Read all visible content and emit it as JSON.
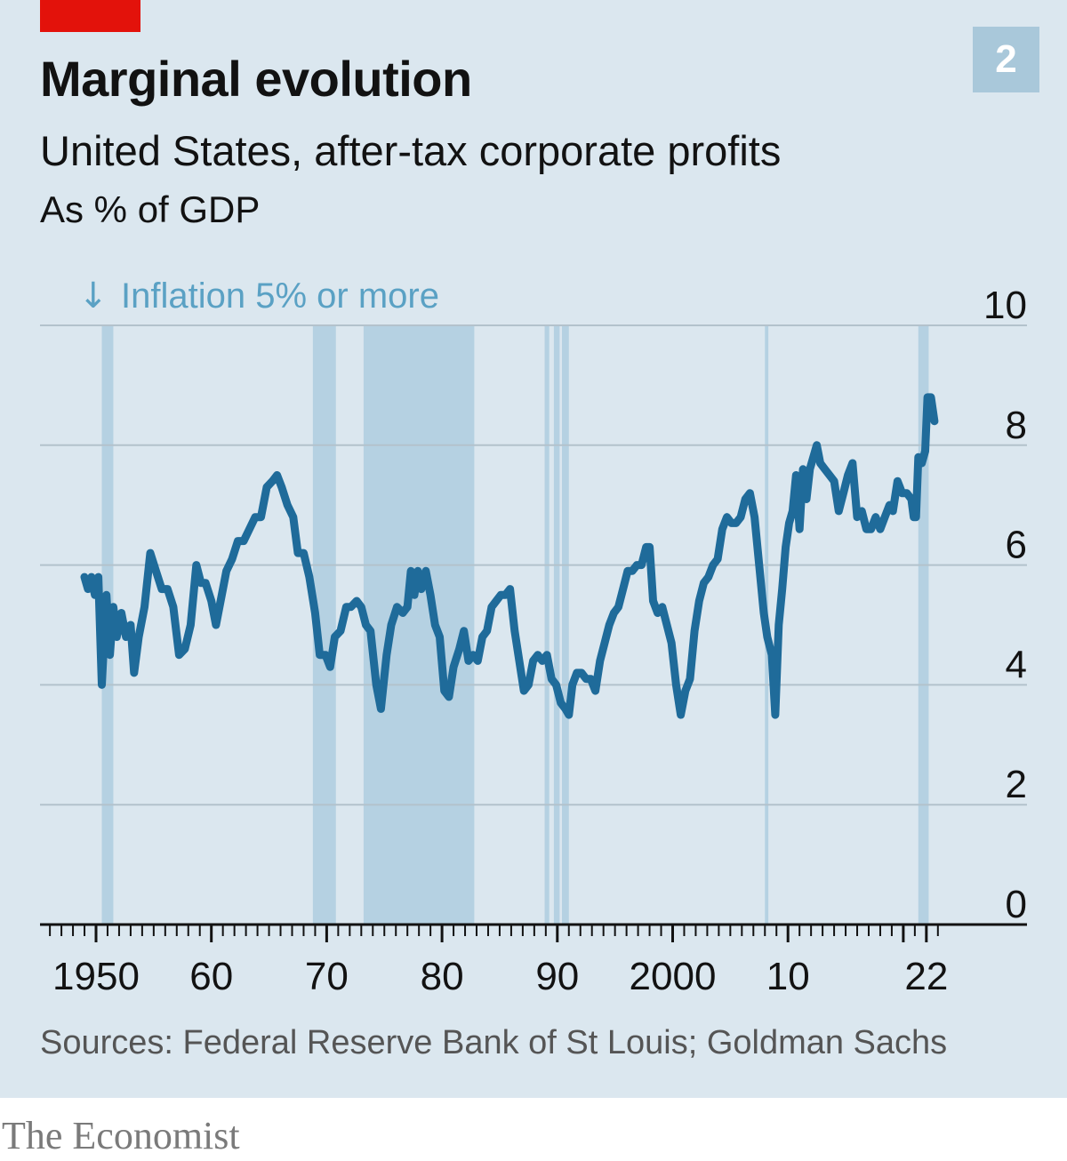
{
  "header": {
    "title": "Marginal evolution",
    "subtitle": "United States, after-tax corporate profits",
    "unit": "As % of GDP",
    "chart_number": "2",
    "brand_color": "#e3120b"
  },
  "legend": {
    "arrow": "↓",
    "shading_label": "Inflation 5% or more",
    "color": "#5aa1c4"
  },
  "footer": {
    "source": "Sources: Federal Reserve Bank of St Louis; Goldman Sachs",
    "brand": "The Economist"
  },
  "chart_data": {
    "type": "line",
    "title": "Marginal evolution",
    "subtitle": "United States, after-tax corporate profits",
    "ylabel": "As % of GDP",
    "xlim": [
      1946,
      2029
    ],
    "ylim": [
      0,
      10
    ],
    "yticks": [
      0,
      2,
      4,
      6,
      8,
      10
    ],
    "ytick_labels": [
      "0",
      "2",
      "4",
      "6",
      "8",
      "10"
    ],
    "xtick_labels": [
      {
        "year": 1950,
        "label": "1950"
      },
      {
        "year": 1960,
        "label": "60"
      },
      {
        "year": 1970,
        "label": "70"
      },
      {
        "year": 1980,
        "label": "80"
      },
      {
        "year": 1990,
        "label": "90"
      },
      {
        "year": 2000,
        "label": "2000"
      },
      {
        "year": 2010,
        "label": "10"
      },
      {
        "year": 2022,
        "label": "22"
      }
    ],
    "grid": true,
    "y_axis_position": "right",
    "line_color": "#1f6b9a",
    "shade_color": "#b5d1e2",
    "shaded_periods": [
      [
        1950.5,
        1951.5
      ],
      [
        1968.8,
        1970.8
      ],
      [
        1973.2,
        1982.8
      ],
      [
        1988.9,
        1989.3
      ],
      [
        1989.7,
        1990.2
      ],
      [
        1990.4,
        1991.0
      ],
      [
        2008.0,
        2008.3
      ],
      [
        2021.3,
        2022.2
      ]
    ],
    "series": [
      {
        "values": [
          [
            1949.0,
            5.8
          ],
          [
            1949.3,
            5.6
          ],
          [
            1949.6,
            5.8
          ],
          [
            1949.9,
            5.5
          ],
          [
            1950.2,
            5.8
          ],
          [
            1950.5,
            4.0
          ],
          [
            1950.9,
            5.5
          ],
          [
            1951.2,
            4.5
          ],
          [
            1951.5,
            5.3
          ],
          [
            1951.8,
            4.8
          ],
          [
            1952.2,
            5.2
          ],
          [
            1952.6,
            4.8
          ],
          [
            1953.0,
            5.0
          ],
          [
            1953.3,
            4.2
          ],
          [
            1953.7,
            4.8
          ],
          [
            1954.2,
            5.3
          ],
          [
            1954.7,
            6.2
          ],
          [
            1955.2,
            5.9
          ],
          [
            1955.7,
            5.6
          ],
          [
            1956.2,
            5.6
          ],
          [
            1956.7,
            5.3
          ],
          [
            1957.2,
            4.5
          ],
          [
            1957.7,
            4.6
          ],
          [
            1958.2,
            5.0
          ],
          [
            1958.7,
            6.0
          ],
          [
            1959.1,
            5.7
          ],
          [
            1959.5,
            5.7
          ],
          [
            1960.0,
            5.4
          ],
          [
            1960.4,
            5.0
          ],
          [
            1960.9,
            5.5
          ],
          [
            1961.3,
            5.9
          ],
          [
            1961.8,
            6.1
          ],
          [
            1962.3,
            6.4
          ],
          [
            1962.8,
            6.4
          ],
          [
            1963.3,
            6.6
          ],
          [
            1963.8,
            6.8
          ],
          [
            1964.3,
            6.8
          ],
          [
            1964.8,
            7.3
          ],
          [
            1965.3,
            7.4
          ],
          [
            1965.7,
            7.5
          ],
          [
            1966.1,
            7.3
          ],
          [
            1966.6,
            7.0
          ],
          [
            1967.1,
            6.8
          ],
          [
            1967.5,
            6.2
          ],
          [
            1968.0,
            6.2
          ],
          [
            1968.5,
            5.8
          ],
          [
            1969.0,
            5.2
          ],
          [
            1969.4,
            4.5
          ],
          [
            1969.9,
            4.5
          ],
          [
            1970.3,
            4.3
          ],
          [
            1970.7,
            4.8
          ],
          [
            1971.2,
            4.9
          ],
          [
            1971.7,
            5.3
          ],
          [
            1972.1,
            5.3
          ],
          [
            1972.6,
            5.4
          ],
          [
            1973.0,
            5.3
          ],
          [
            1973.4,
            5.0
          ],
          [
            1973.8,
            4.9
          ],
          [
            1974.3,
            4.0
          ],
          [
            1974.7,
            3.6
          ],
          [
            1975.2,
            4.5
          ],
          [
            1975.6,
            5.0
          ],
          [
            1976.1,
            5.3
          ],
          [
            1976.6,
            5.2
          ],
          [
            1977.0,
            5.3
          ],
          [
            1977.3,
            5.9
          ],
          [
            1977.6,
            5.5
          ],
          [
            1977.9,
            5.9
          ],
          [
            1978.2,
            5.6
          ],
          [
            1978.6,
            5.9
          ],
          [
            1979.0,
            5.5
          ],
          [
            1979.4,
            5.0
          ],
          [
            1979.8,
            4.8
          ],
          [
            1980.2,
            3.9
          ],
          [
            1980.6,
            3.8
          ],
          [
            1981.0,
            4.3
          ],
          [
            1981.5,
            4.6
          ],
          [
            1981.9,
            4.9
          ],
          [
            1982.3,
            4.4
          ],
          [
            1982.7,
            4.5
          ],
          [
            1983.1,
            4.4
          ],
          [
            1983.5,
            4.8
          ],
          [
            1983.9,
            4.9
          ],
          [
            1984.3,
            5.3
          ],
          [
            1984.7,
            5.4
          ],
          [
            1985.1,
            5.5
          ],
          [
            1985.5,
            5.5
          ],
          [
            1985.9,
            5.6
          ],
          [
            1986.3,
            4.9
          ],
          [
            1986.7,
            4.4
          ],
          [
            1987.1,
            3.9
          ],
          [
            1987.5,
            4.0
          ],
          [
            1987.9,
            4.4
          ],
          [
            1988.3,
            4.5
          ],
          [
            1988.7,
            4.4
          ],
          [
            1989.1,
            4.5
          ],
          [
            1989.5,
            4.1
          ],
          [
            1989.9,
            4.0
          ],
          [
            1990.3,
            3.7
          ],
          [
            1990.7,
            3.6
          ],
          [
            1991.0,
            3.5
          ],
          [
            1991.3,
            4.0
          ],
          [
            1991.7,
            4.2
          ],
          [
            1992.1,
            4.2
          ],
          [
            1992.5,
            4.1
          ],
          [
            1992.9,
            4.1
          ],
          [
            1993.3,
            3.9
          ],
          [
            1993.7,
            4.4
          ],
          [
            1994.1,
            4.7
          ],
          [
            1994.5,
            5.0
          ],
          [
            1994.9,
            5.2
          ],
          [
            1995.3,
            5.3
          ],
          [
            1995.7,
            5.6
          ],
          [
            1996.1,
            5.9
          ],
          [
            1996.5,
            5.9
          ],
          [
            1996.9,
            6.0
          ],
          [
            1997.3,
            6.0
          ],
          [
            1997.7,
            6.3
          ],
          [
            1998.0,
            6.3
          ],
          [
            1998.3,
            5.4
          ],
          [
            1998.7,
            5.2
          ],
          [
            1999.1,
            5.3
          ],
          [
            1999.5,
            5.0
          ],
          [
            1999.9,
            4.7
          ],
          [
            2000.3,
            4.0
          ],
          [
            2000.7,
            3.5
          ],
          [
            2001.1,
            3.9
          ],
          [
            2001.5,
            4.1
          ],
          [
            2001.9,
            4.9
          ],
          [
            2002.3,
            5.4
          ],
          [
            2002.7,
            5.7
          ],
          [
            2003.1,
            5.8
          ],
          [
            2003.5,
            6.0
          ],
          [
            2003.9,
            6.1
          ],
          [
            2004.3,
            6.6
          ],
          [
            2004.7,
            6.8
          ],
          [
            2005.1,
            6.7
          ],
          [
            2005.5,
            6.7
          ],
          [
            2005.9,
            6.8
          ],
          [
            2006.3,
            7.1
          ],
          [
            2006.7,
            7.2
          ],
          [
            2007.1,
            6.8
          ],
          [
            2007.5,
            6.0
          ],
          [
            2007.9,
            5.2
          ],
          [
            2008.2,
            4.8
          ],
          [
            2008.6,
            4.5
          ],
          [
            2008.9,
            3.5
          ],
          [
            2009.2,
            5.0
          ],
          [
            2009.5,
            5.6
          ],
          [
            2009.8,
            6.3
          ],
          [
            2010.1,
            6.7
          ],
          [
            2010.4,
            6.9
          ],
          [
            2010.7,
            7.5
          ],
          [
            2011.0,
            6.6
          ],
          [
            2011.3,
            7.6
          ],
          [
            2011.6,
            7.1
          ],
          [
            2011.9,
            7.6
          ],
          [
            2012.2,
            7.8
          ],
          [
            2012.5,
            8.0
          ],
          [
            2012.8,
            7.7
          ],
          [
            2013.2,
            7.6
          ],
          [
            2013.6,
            7.5
          ],
          [
            2014.0,
            7.4
          ],
          [
            2014.4,
            6.9
          ],
          [
            2014.8,
            7.2
          ],
          [
            2015.2,
            7.5
          ],
          [
            2015.6,
            7.7
          ],
          [
            2016.0,
            6.8
          ],
          [
            2016.4,
            6.9
          ],
          [
            2016.8,
            6.6
          ],
          [
            2017.2,
            6.6
          ],
          [
            2017.6,
            6.8
          ],
          [
            2018.0,
            6.6
          ],
          [
            2018.4,
            6.8
          ],
          [
            2018.8,
            7.0
          ],
          [
            2019.1,
            6.9
          ],
          [
            2019.5,
            7.4
          ],
          [
            2019.9,
            7.2
          ],
          [
            2020.3,
            7.2
          ],
          [
            2020.7,
            7.1
          ],
          [
            2020.9,
            6.8
          ],
          [
            2021.1,
            6.8
          ],
          [
            2021.3,
            7.8
          ],
          [
            2021.6,
            7.7
          ],
          [
            2021.9,
            7.9
          ],
          [
            2022.1,
            8.8
          ],
          [
            2022.4,
            8.8
          ],
          [
            2022.7,
            8.4
          ]
        ]
      }
    ]
  }
}
